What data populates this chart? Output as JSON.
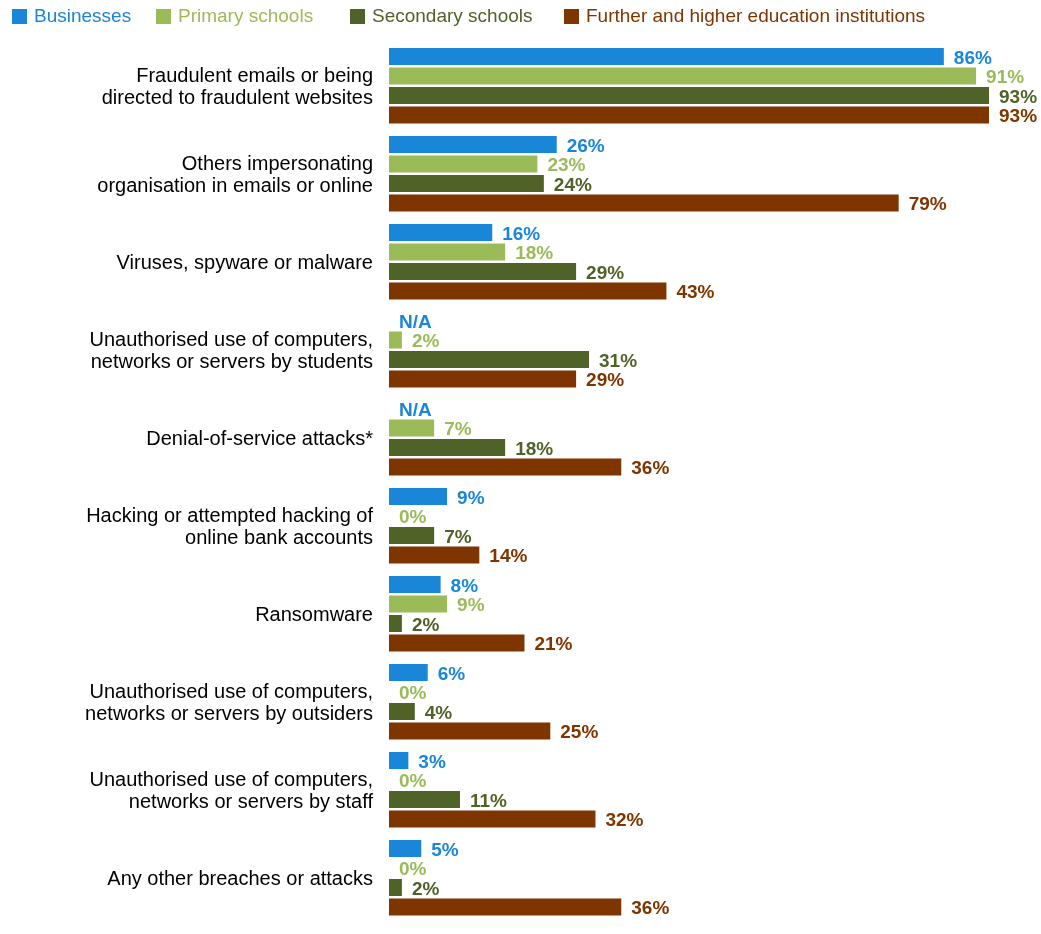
{
  "chart_data": {
    "type": "bar",
    "orientation": "horizontal",
    "legend": "top",
    "categories": [
      "Fraudulent emails or being directed to fraudulent websites",
      "Others impersonating organisation in emails or online",
      "Viruses, spyware or malware",
      "Unauthorised use of computers, networks or servers by students",
      "Denial-of-service attacks*",
      "Hacking or attempted hacking of online bank accounts",
      "Ransomware",
      "Unauthorised use of computers, networks or servers by outsiders",
      "Unauthorised use of computers, networks or servers by staff",
      "Any other breaches or attacks"
    ],
    "series": [
      {
        "name": "Businesses",
        "color": "#1a86d8",
        "values": [
          86,
          26,
          16,
          null,
          null,
          9,
          8,
          6,
          3,
          5
        ],
        "value_labels": [
          "86%",
          "26%",
          "16%",
          "N/A",
          "N/A",
          "9%",
          "8%",
          "6%",
          "3%",
          "5%"
        ]
      },
      {
        "name": "Primary schools",
        "color": "#9bbb59",
        "values": [
          91,
          23,
          18,
          2,
          7,
          0,
          9,
          0,
          0,
          0
        ],
        "value_labels": [
          "91%",
          "23%",
          "18%",
          "2%",
          "7%",
          "0%",
          "9%",
          "0%",
          "0%",
          "0%"
        ]
      },
      {
        "name": "Secondary schools",
        "color": "#4f6228",
        "values": [
          93,
          24,
          29,
          31,
          18,
          7,
          2,
          4,
          11,
          2
        ],
        "value_labels": [
          "93%",
          "24%",
          "29%",
          "31%",
          "18%",
          "7%",
          "2%",
          "4%",
          "11%",
          "2%"
        ]
      },
      {
        "name": "Further and higher education institutions",
        "color": "#7f3500",
        "values": [
          93,
          79,
          43,
          29,
          36,
          14,
          21,
          25,
          32,
          36
        ],
        "value_labels": [
          "93%",
          "79%",
          "43%",
          "29%",
          "36%",
          "14%",
          "21%",
          "25%",
          "32%",
          "36%"
        ]
      }
    ]
  }
}
